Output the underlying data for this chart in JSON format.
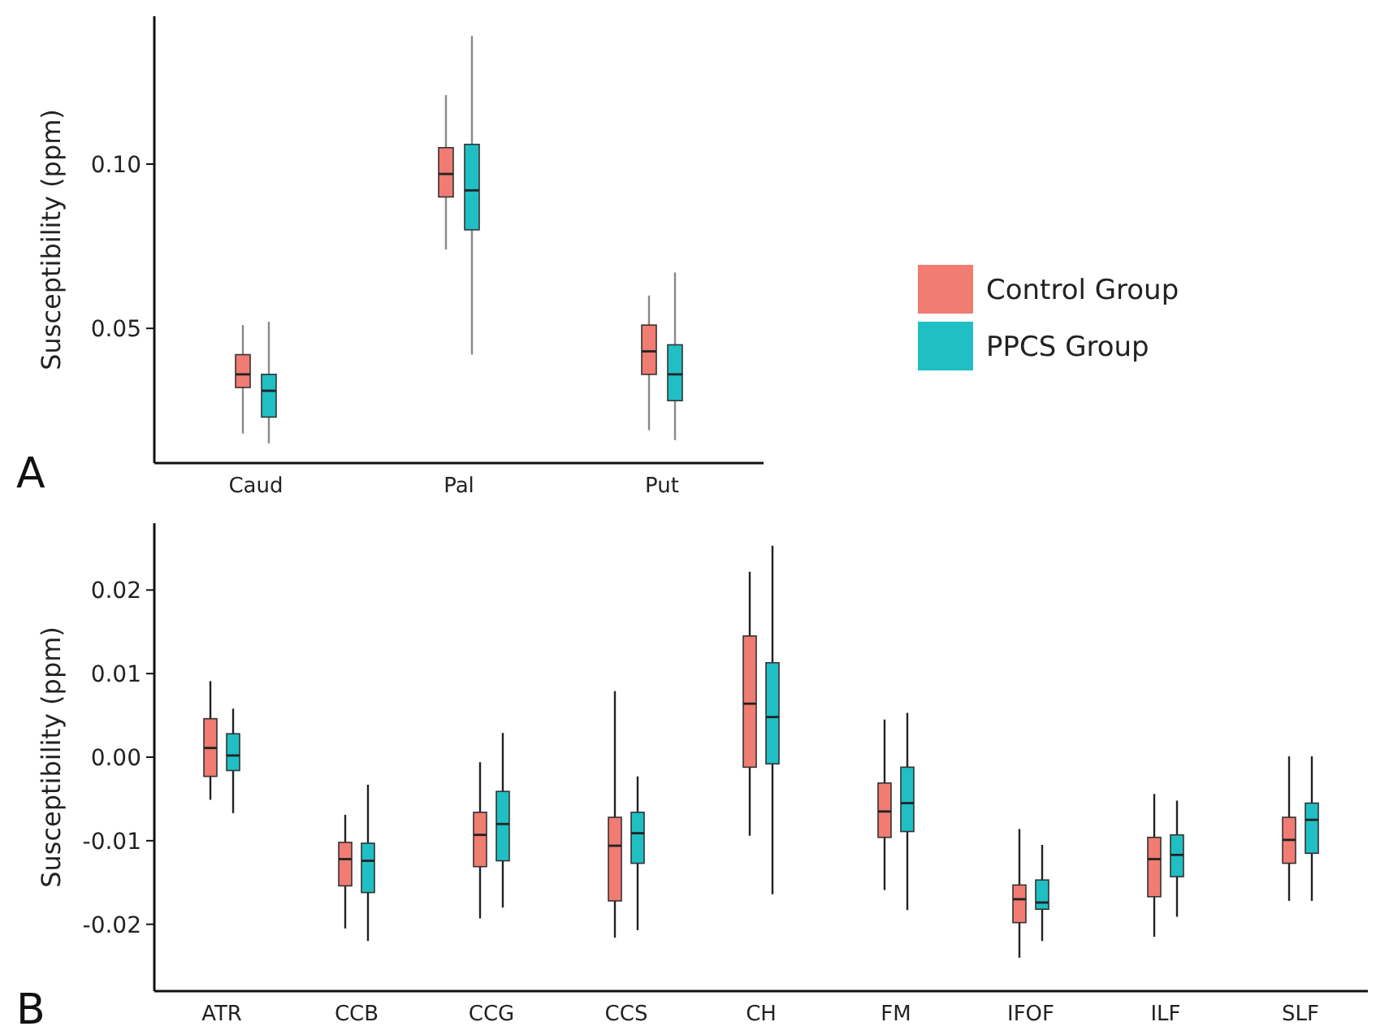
{
  "chart_data": [
    {
      "type": "box",
      "ylabel": "Susceptibility (ppm)",
      "categories": [
        "Caud",
        "Pal",
        "Put"
      ],
      "ylim": [
        0.009,
        0.145
      ],
      "yticks": [
        0.05,
        {
          "value": 0.1,
          "label": "0.10"
        }
      ],
      "legend": "right",
      "annotations": [
        "A"
      ],
      "series": [
        {
          "name": "Control Group",
          "color": "#f07c72",
          "boxes": [
            {
              "low": 0.018,
              "q1": 0.032,
              "median": 0.036,
              "q3": 0.042,
              "high": 0.051
            },
            {
              "low": 0.074,
              "q1": 0.09,
              "median": 0.097,
              "q3": 0.105,
              "high": 0.121
            },
            {
              "low": 0.019,
              "q1": 0.036,
              "median": 0.043,
              "q3": 0.051,
              "high": 0.06
            }
          ]
        },
        {
          "name": "PPCS Group",
          "color": "#1fbfc4",
          "boxes": [
            {
              "low": 0.015,
              "q1": 0.023,
              "median": 0.031,
              "q3": 0.036,
              "high": 0.052
            },
            {
              "low": 0.042,
              "q1": 0.08,
              "median": 0.092,
              "q3": 0.106,
              "high": 0.139
            },
            {
              "low": 0.016,
              "q1": 0.028,
              "median": 0.036,
              "q3": 0.045,
              "high": 0.067
            }
          ]
        }
      ]
    },
    {
      "type": "box",
      "ylabel": "Susceptibility (ppm)",
      "categories": [
        "ATR",
        "CCB",
        "CCG",
        "CCS",
        "CH",
        "FM",
        "IFOF",
        "ILF",
        "SLF"
      ],
      "ylim": [
        -0.028,
        0.028
      ],
      "yticks": [
        -0.02,
        -0.01,
        {
          "value": 0,
          "label": "0.00"
        },
        0.01,
        0.02
      ],
      "annotations": [
        "B"
      ],
      "series": [
        {
          "color": "#f07c72",
          "boxes": [
            {
              "low": -0.0051,
              "q1": -0.0023,
              "median": 0.0011,
              "q3": 0.0046,
              "high": 0.0091
            },
            {
              "low": -0.0205,
              "q1": -0.0154,
              "median": -0.0122,
              "q3": -0.0102,
              "high": -0.0069
            },
            {
              "low": -0.0193,
              "q1": -0.0131,
              "median": -0.0093,
              "q3": -0.0066,
              "high": -0.0006
            },
            {
              "low": -0.0216,
              "q1": -0.0172,
              "median": -0.0106,
              "q3": -0.0072,
              "high": 0.0079
            },
            {
              "low": -0.0094,
              "q1": -0.0012,
              "median": 0.0064,
              "q3": 0.0145,
              "high": 0.0222
            },
            {
              "low": -0.0159,
              "q1": -0.0096,
              "median": -0.0065,
              "q3": -0.0031,
              "high": 0.0045
            },
            {
              "low": -0.024,
              "q1": -0.0198,
              "median": -0.017,
              "q3": -0.0153,
              "high": -0.0086
            },
            {
              "low": -0.0215,
              "q1": -0.0167,
              "median": -0.0122,
              "q3": -0.0096,
              "high": -0.0044
            },
            {
              "low": -0.0172,
              "q1": -0.0127,
              "median": -0.0099,
              "q3": -0.0072,
              "high": 0.0001
            }
          ]
        },
        {
          "color": "#1fbfc4",
          "boxes": [
            {
              "low": -0.0067,
              "q1": -0.0016,
              "median": 0.0002,
              "q3": 0.0028,
              "high": 0.0058
            },
            {
              "low": -0.022,
              "q1": -0.0162,
              "median": -0.0124,
              "q3": -0.0103,
              "high": -0.0033
            },
            {
              "low": -0.018,
              "q1": -0.0124,
              "median": -0.008,
              "q3": -0.0041,
              "high": 0.0029
            },
            {
              "low": -0.0207,
              "q1": -0.0127,
              "median": -0.0091,
              "q3": -0.0066,
              "high": -0.0023
            },
            {
              "low": -0.0164,
              "q1": -0.0008,
              "median": 0.0048,
              "q3": 0.0113,
              "high": 0.0253
            },
            {
              "low": -0.0183,
              "q1": -0.0089,
              "median": -0.0055,
              "q3": -0.0012,
              "high": 0.0053
            },
            {
              "low": -0.022,
              "q1": -0.0182,
              "median": -0.0174,
              "q3": -0.0147,
              "high": -0.0105
            },
            {
              "low": -0.0191,
              "q1": -0.0143,
              "median": -0.0117,
              "q3": -0.0093,
              "high": -0.0052
            },
            {
              "low": -0.0172,
              "q1": -0.0115,
              "median": -0.0075,
              "q3": -0.0055,
              "high": 0.0001
            }
          ]
        }
      ]
    }
  ]
}
